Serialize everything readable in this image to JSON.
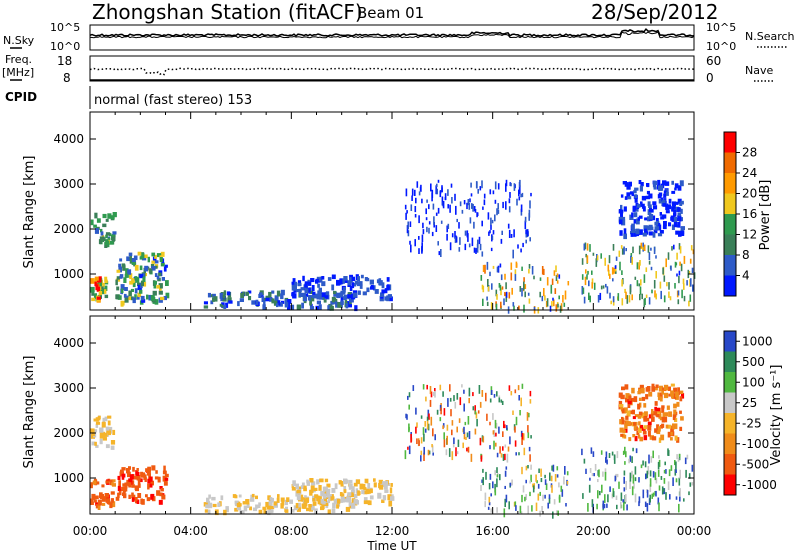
{
  "header": {
    "station": "Zhongshan Station (fitACF)",
    "beam": "Beam 01",
    "date": "28/Sep/2012",
    "cpid_text": "normal (fast stereo) 153"
  },
  "strip_labels": {
    "nsky": "N.Sky",
    "freq_top": "Freq.",
    "freq_unit": "[MHz]",
    "cpid": "CPID",
    "nsearch": "N.Search",
    "nave": "Nave",
    "noise_hi": "10^5",
    "noise_lo": "10^0",
    "noise_hi_r": "10^5",
    "noise_lo_r": "10^0",
    "freq_hi": "18",
    "freq_lo": "8",
    "nave_hi": "60",
    "nave_lo": "0"
  },
  "colors": {
    "power": [
      "#0018ff",
      "#2e5bc8",
      "#3a7f58",
      "#2f9a4f",
      "#f0c81e",
      "#ff9a00",
      "#f06a00",
      "#ff0000"
    ],
    "velocity": [
      "#ff0000",
      "#f05a10",
      "#f08c1a",
      "#f5b42a",
      "#c8c8c8",
      "#50b840",
      "#2e8a5a",
      "#2848c8"
    ]
  },
  "chart_data": [
    {
      "type": "heatmap",
      "name": "power",
      "ylabel": "Slant Range [km]",
      "ylim": [
        200,
        4600
      ],
      "yticks": [
        "1000",
        "2000",
        "3000",
        "4000"
      ],
      "xlim": [
        "00:00",
        "24:00"
      ],
      "colorbar_label": "Power [dB]",
      "colorbar_ticks": [
        "4",
        "8",
        "12",
        "16",
        "20",
        "24",
        "28"
      ],
      "colorbar_range": [
        0,
        32
      ],
      "regions": [
        {
          "t": [
            0.0,
            0.6
          ],
          "r": [
            400,
            1000
          ],
          "level": [
            0.3,
            1.0
          ]
        },
        {
          "t": [
            0.0,
            0.9
          ],
          "r": [
            1700,
            2400
          ],
          "level": [
            0.2,
            0.55
          ]
        },
        {
          "t": [
            1.0,
            3.0
          ],
          "r": [
            400,
            1500
          ],
          "level": [
            0.1,
            0.6
          ]
        },
        {
          "t": [
            4.5,
            10.5
          ],
          "r": [
            280,
            650
          ],
          "level": [
            0.05,
            0.35
          ]
        },
        {
          "t": [
            8.0,
            12.0
          ],
          "r": [
            500,
            1000
          ],
          "level": [
            0.05,
            0.25
          ]
        },
        {
          "t": [
            12.5,
            17.5
          ],
          "r": [
            1500,
            3100
          ],
          "level": [
            0.0,
            0.2
          ]
        },
        {
          "t": [
            15.5,
            19.0
          ],
          "r": [
            250,
            1300
          ],
          "level": [
            0.1,
            0.85
          ]
        },
        {
          "t": [
            19.5,
            24.0
          ],
          "r": [
            400,
            1700
          ],
          "level": [
            0.1,
            0.7
          ]
        },
        {
          "t": [
            21.0,
            23.5
          ],
          "r": [
            1900,
            3100
          ],
          "level": [
            0.0,
            0.2
          ]
        }
      ]
    },
    {
      "type": "heatmap",
      "name": "velocity",
      "ylabel": "Slant Range [km]",
      "ylim": [
        200,
        4600
      ],
      "yticks": [
        "1000",
        "2000",
        "3000",
        "4000"
      ],
      "xticks": [
        "00:00",
        "04:00",
        "08:00",
        "12:00",
        "16:00",
        "20:00",
        "00:00"
      ],
      "xlabel": "Time UT",
      "colorbar_label": "Velocity [m s⁻¹]",
      "colorbar_ticks": [
        "1000",
        "500",
        "100",
        "25",
        "-25",
        "-100",
        "-500",
        "-1000"
      ],
      "regions": [
        {
          "t": [
            0.0,
            0.9
          ],
          "r": [
            400,
            1000
          ],
          "level": [
            0.1,
            0.3
          ]
        },
        {
          "t": [
            0.0,
            0.9
          ],
          "r": [
            1700,
            2400
          ],
          "level": [
            0.45,
            0.55
          ]
        },
        {
          "t": [
            1.0,
            3.0
          ],
          "r": [
            500,
            1300
          ],
          "level": [
            0.1,
            0.25
          ]
        },
        {
          "t": [
            4.5,
            10.5
          ],
          "r": [
            280,
            650
          ],
          "level": [
            0.45,
            0.55
          ]
        },
        {
          "t": [
            8.0,
            12.0
          ],
          "r": [
            500,
            1000
          ],
          "level": [
            0.45,
            0.55
          ]
        },
        {
          "t": [
            12.5,
            17.5
          ],
          "r": [
            1500,
            3100
          ],
          "level": [
            0.0,
            1.0
          ]
        },
        {
          "t": [
            15.5,
            19.0
          ],
          "r": [
            250,
            1300
          ],
          "level": [
            0.45,
            1.0
          ]
        },
        {
          "t": [
            19.5,
            24.0
          ],
          "r": [
            400,
            1700
          ],
          "level": [
            0.5,
            1.0
          ]
        },
        {
          "t": [
            21.0,
            23.5
          ],
          "r": [
            1900,
            3100
          ],
          "level": [
            0.1,
            0.4
          ]
        }
      ]
    }
  ]
}
